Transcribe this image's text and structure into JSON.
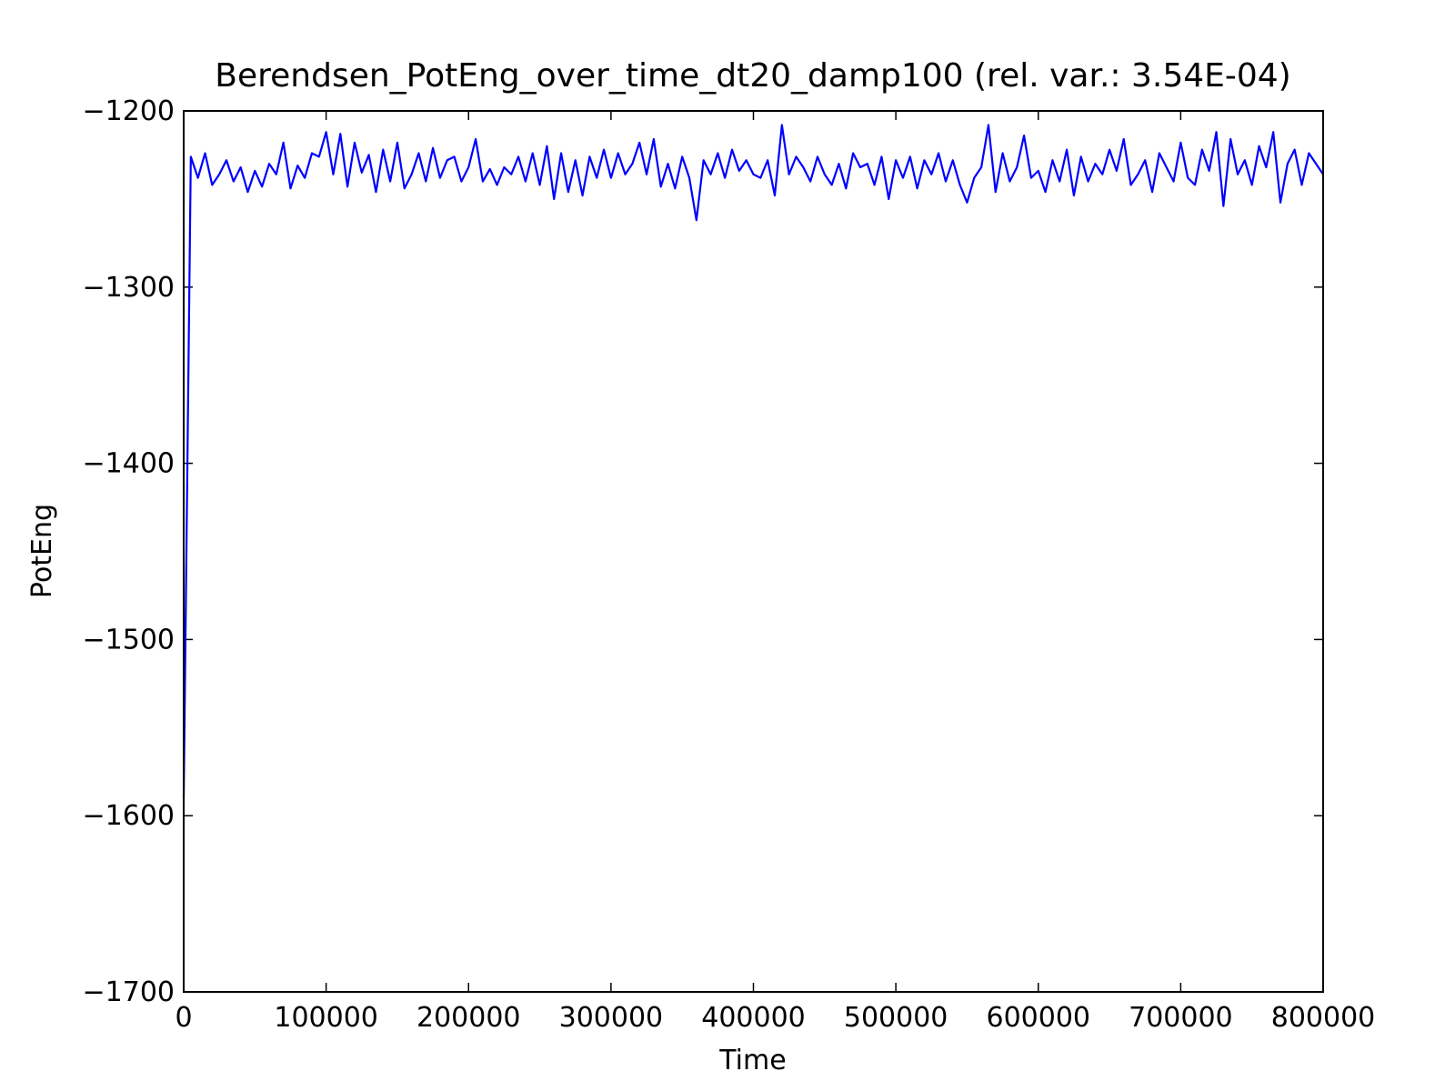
{
  "chart_data": {
    "type": "line",
    "title": "Berendsen_PotEng_over_time_dt20_damp100 (rel. var.: 3.54E-04)",
    "xlabel": "Time",
    "ylabel": "PotEng",
    "xlim": [
      0,
      800000
    ],
    "ylim": [
      -1700,
      -1200
    ],
    "xticks": [
      0,
      100000,
      200000,
      300000,
      400000,
      500000,
      600000,
      700000,
      800000
    ],
    "yticks": [
      {
        "value": -1700,
        "label": "−1700"
      },
      {
        "value": -1600,
        "label": "−1600"
      },
      {
        "value": -1500,
        "label": "−1500"
      },
      {
        "value": -1400,
        "label": "−1400"
      },
      {
        "value": -1300,
        "label": "−1300"
      },
      {
        "value": -1200,
        "label": "−1200"
      }
    ],
    "grid": false,
    "series": [
      {
        "color": "#0000ff",
        "x": [
          0,
          5000,
          10000,
          15000,
          20000,
          25000,
          30000,
          35000,
          40000,
          45000,
          50000,
          55000,
          60000,
          65000,
          70000,
          75000,
          80000,
          85000,
          90000,
          95000,
          100000,
          105000,
          110000,
          115000,
          120000,
          125000,
          130000,
          135000,
          140000,
          145000,
          150000,
          155000,
          160000,
          165000,
          170000,
          175000,
          180000,
          185000,
          190000,
          195000,
          200000,
          205000,
          210000,
          215000,
          220000,
          225000,
          230000,
          235000,
          240000,
          245000,
          250000,
          255000,
          260000,
          265000,
          270000,
          275000,
          280000,
          285000,
          290000,
          295000,
          300000,
          305000,
          310000,
          315000,
          320000,
          325000,
          330000,
          335000,
          340000,
          345000,
          350000,
          355000,
          360000,
          365000,
          370000,
          375000,
          380000,
          385000,
          390000,
          395000,
          400000,
          405000,
          410000,
          415000,
          420000,
          425000,
          430000,
          435000,
          440000,
          445000,
          450000,
          455000,
          460000,
          465000,
          470000,
          475000,
          480000,
          485000,
          490000,
          495000,
          500000,
          505000,
          510000,
          515000,
          520000,
          525000,
          530000,
          535000,
          540000,
          545000,
          550000,
          555000,
          560000,
          565000,
          570000,
          575000,
          580000,
          585000,
          590000,
          595000,
          600000,
          605000,
          610000,
          615000,
          620000,
          625000,
          630000,
          635000,
          640000,
          645000,
          650000,
          655000,
          660000,
          665000,
          670000,
          675000,
          680000,
          685000,
          690000,
          695000,
          700000,
          705000,
          710000,
          715000,
          720000,
          725000,
          730000,
          735000,
          740000,
          745000,
          750000,
          755000,
          760000,
          765000,
          770000,
          775000,
          780000,
          785000,
          790000,
          795000,
          800000
        ],
        "values": [
          -1590,
          -1226,
          -1238,
          -1224,
          -1242,
          -1236,
          -1228,
          -1240,
          -1232,
          -1246,
          -1234,
          -1243,
          -1230,
          -1236,
          -1218,
          -1244,
          -1231,
          -1238,
          -1224,
          -1226,
          -1212,
          -1236,
          -1213,
          -1243,
          -1218,
          -1235,
          -1225,
          -1246,
          -1222,
          -1240,
          -1218,
          -1244,
          -1236,
          -1224,
          -1240,
          -1221,
          -1238,
          -1228,
          -1226,
          -1240,
          -1232,
          -1216,
          -1240,
          -1233,
          -1242,
          -1232,
          -1236,
          -1226,
          -1240,
          -1224,
          -1242,
          -1220,
          -1250,
          -1224,
          -1246,
          -1228,
          -1248,
          -1226,
          -1238,
          -1222,
          -1238,
          -1224,
          -1236,
          -1230,
          -1218,
          -1236,
          -1216,
          -1243,
          -1230,
          -1244,
          -1226,
          -1238,
          -1262,
          -1228,
          -1236,
          -1224,
          -1238,
          -1222,
          -1234,
          -1228,
          -1236,
          -1238,
          -1228,
          -1248,
          -1208,
          -1236,
          -1226,
          -1232,
          -1240,
          -1226,
          -1236,
          -1242,
          -1230,
          -1244,
          -1224,
          -1232,
          -1230,
          -1242,
          -1226,
          -1250,
          -1228,
          -1238,
          -1226,
          -1244,
          -1228,
          -1236,
          -1224,
          -1240,
          -1228,
          -1242,
          -1252,
          -1238,
          -1232,
          -1208,
          -1246,
          -1224,
          -1240,
          -1232,
          -1214,
          -1238,
          -1234,
          -1246,
          -1228,
          -1240,
          -1222,
          -1248,
          -1226,
          -1240,
          -1230,
          -1236,
          -1222,
          -1234,
          -1216,
          -1242,
          -1236,
          -1228,
          -1246,
          -1224,
          -1232,
          -1240,
          -1218,
          -1238,
          -1242,
          -1222,
          -1234,
          -1212,
          -1254,
          -1216,
          -1236,
          -1228,
          -1242,
          -1220,
          -1232,
          -1212,
          -1252,
          -1230,
          -1222,
          -1242,
          -1224,
          -1230,
          -1236
        ]
      }
    ]
  }
}
